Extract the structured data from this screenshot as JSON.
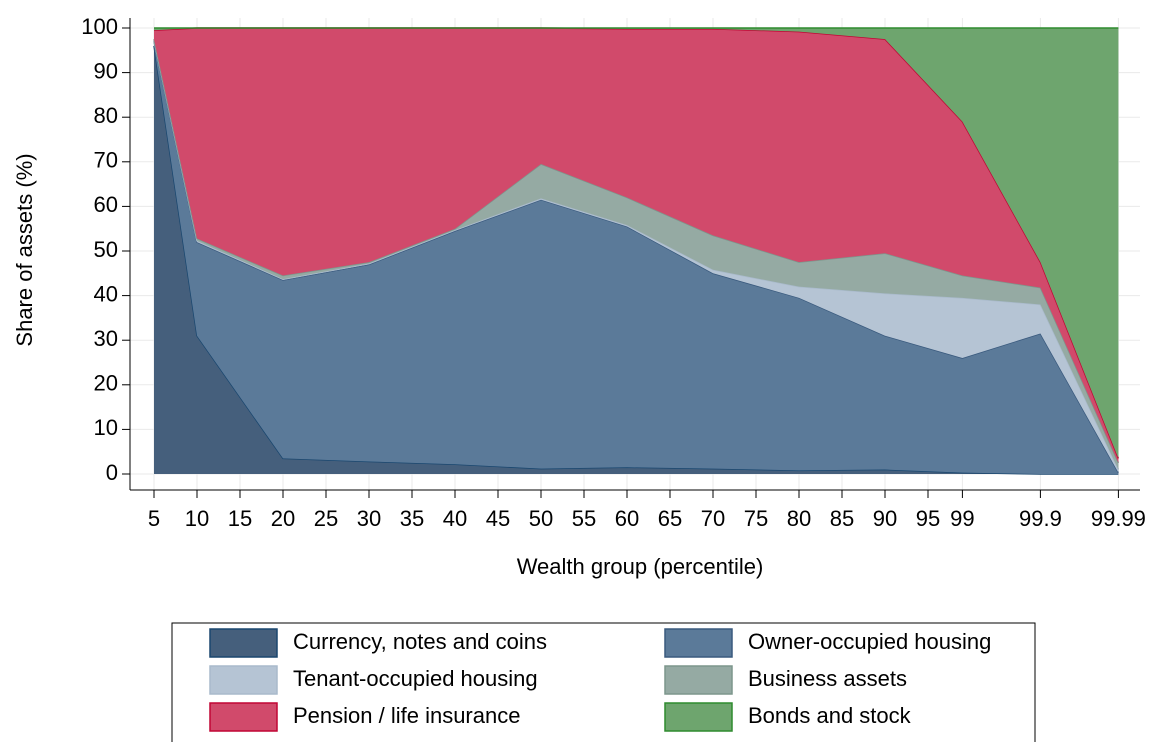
{
  "chart_data": {
    "type": "stacked_area",
    "xlabel": "Wealth group (percentile)",
    "ylabel": "Share of assets (%)",
    "x": [
      5,
      10,
      20,
      30,
      40,
      50,
      60,
      70,
      80,
      90,
      99,
      99.9,
      99.99
    ],
    "xticks": [
      5,
      10,
      15,
      20,
      25,
      30,
      35,
      40,
      45,
      50,
      55,
      60,
      65,
      70,
      75,
      80,
      85,
      90,
      95,
      99,
      99.9,
      99.99
    ],
    "ylim": [
      0,
      100
    ],
    "yticks": [
      0,
      10,
      20,
      30,
      40,
      50,
      60,
      70,
      80,
      90,
      100
    ],
    "grid": true,
    "legend": "bottom",
    "series": [
      {
        "name": "Currency, notes and coins",
        "color": "#455f7c",
        "values": [
          96,
          31,
          3.5,
          2.8,
          2.2,
          1.2,
          1.5,
          1.2,
          0.8,
          1.0,
          0.3,
          0,
          0
        ]
      },
      {
        "name": "Owner-occupied housing",
        "color": "#5b7a99",
        "values": [
          1,
          21,
          40,
          44.2,
          52.3,
          60.3,
          54,
          43.8,
          38.7,
          30,
          25.7,
          31.5,
          0.3
        ]
      },
      {
        "name": "Tenant-occupied housing",
        "color": "#b5c4d4",
        "values": [
          0.2,
          0.3,
          0.2,
          0.2,
          0.2,
          0.3,
          0.3,
          0.8,
          2.5,
          9.5,
          13.5,
          6.5,
          0.7
        ]
      },
      {
        "name": "Business assets",
        "color": "#95aaa3",
        "values": [
          0.3,
          0.5,
          0.8,
          0.3,
          0.3,
          7.7,
          6.2,
          7.7,
          5.5,
          9,
          5,
          3.8,
          1.5
        ]
      },
      {
        "name": "Pension / life insurance",
        "color": "#d14a6b",
        "values": [
          2,
          47.2,
          55.5,
          52.5,
          45,
          30.5,
          37.8,
          46.3,
          51.7,
          48,
          34.5,
          5.7,
          1
        ]
      },
      {
        "name": "Bonds and stock",
        "color": "#6ea56e",
        "values": [
          0.5,
          0,
          0,
          0,
          0,
          0,
          0.2,
          0.2,
          0.8,
          2.5,
          21,
          52.5,
          96.5
        ]
      }
    ]
  }
}
